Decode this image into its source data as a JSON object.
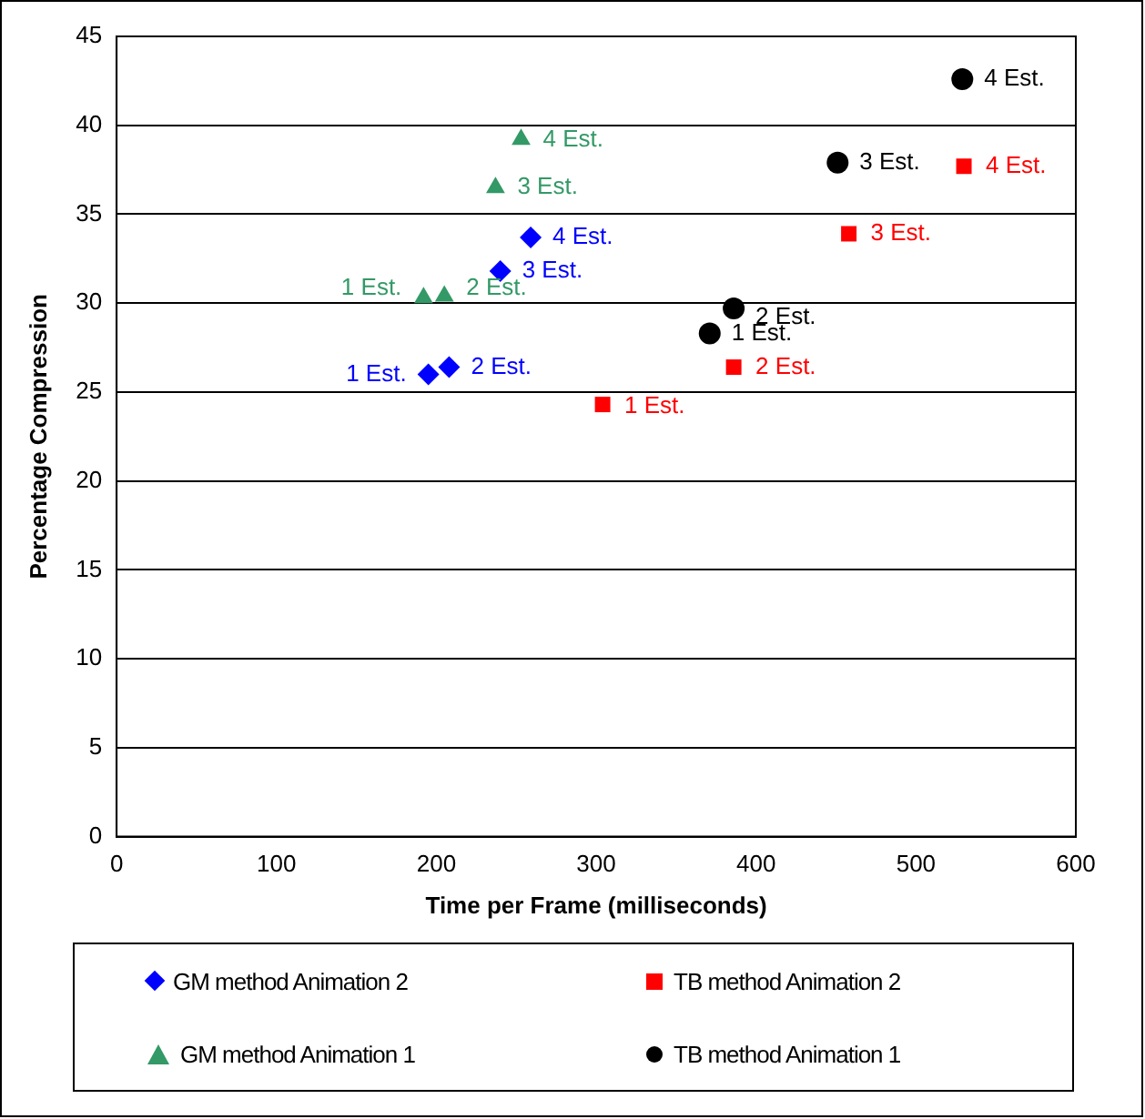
{
  "chart_data": {
    "type": "scatter",
    "xlabel": "Time per Frame (milliseconds)",
    "ylabel": "Percentage Compression",
    "xlim": [
      0,
      600
    ],
    "xticks": [
      0,
      100,
      200,
      300,
      400,
      500,
      600
    ],
    "ylim": [
      0,
      45
    ],
    "yticks": [
      0,
      5,
      10,
      15,
      20,
      25,
      30,
      35,
      40,
      45
    ],
    "grid": "y",
    "legend": "bottom",
    "series": [
      {
        "name": "GM method Animation 2",
        "color": "#0000ff",
        "marker": "diamond",
        "x": [
          195,
          208,
          240,
          259
        ],
        "values": [
          26.0,
          26.4,
          31.8,
          33.7
        ]
      },
      {
        "name": "TB method Animation 2",
        "color": "#ff0000",
        "marker": "square",
        "x": [
          304,
          386,
          458,
          530
        ],
        "values": [
          24.3,
          26.4,
          33.9,
          37.7
        ]
      },
      {
        "name": "GM method Animation 1",
        "color": "#339966",
        "marker": "triangle",
        "x": [
          192,
          205,
          237,
          253
        ],
        "values": [
          30.3,
          30.4,
          36.5,
          39.2
        ]
      },
      {
        "name": "TB method Animation 1",
        "color": "#000000",
        "marker": "circle",
        "x": [
          371,
          386,
          451,
          529
        ],
        "values": [
          28.3,
          29.7,
          37.9,
          42.6
        ]
      }
    ],
    "annotations": [
      {
        "text": "1 Est.",
        "x": 195,
        "y": 26.0
      },
      {
        "text": "2 Est.",
        "x": 208,
        "y": 26.4
      },
      {
        "text": "3 Est.",
        "x": 240,
        "y": 31.8
      },
      {
        "text": "4 Est.",
        "x": 259,
        "y": 33.7
      },
      {
        "text": "1 Est.",
        "x": 304,
        "y": 24.3
      },
      {
        "text": "2 Est.",
        "x": 386,
        "y": 26.4
      },
      {
        "text": "3 Est.",
        "x": 458,
        "y": 33.9
      },
      {
        "text": "4 Est.",
        "x": 530,
        "y": 37.7
      },
      {
        "text": "1 Est.",
        "x": 192,
        "y": 30.3
      },
      {
        "text": "2 Est.",
        "x": 205,
        "y": 30.4
      },
      {
        "text": "3 Est.",
        "x": 237,
        "y": 36.5
      },
      {
        "text": "4 Est.",
        "x": 253,
        "y": 39.2
      },
      {
        "text": "1 Est.",
        "x": 371,
        "y": 28.3
      },
      {
        "text": "2 Est.",
        "x": 386,
        "y": 29.7
      },
      {
        "text": "3 Est.",
        "x": 451,
        "y": 37.9
      },
      {
        "text": "4 Est.",
        "x": 529,
        "y": 42.6
      }
    ]
  }
}
